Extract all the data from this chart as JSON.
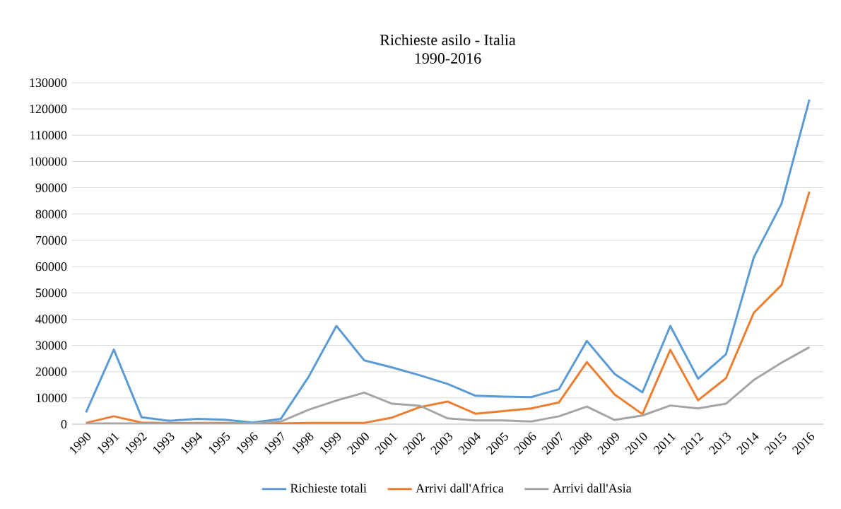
{
  "chart_data": {
    "type": "line",
    "title": "Richieste asilo - Italia",
    "subtitle": "1990-2016",
    "categories": [
      "1990",
      "1991",
      "1992",
      "1993",
      "1994",
      "1995",
      "1996",
      "1997",
      "1998",
      "1999",
      "2000",
      "2001",
      "2002",
      "2003",
      "2004",
      "2005",
      "2006",
      "2007",
      "2008",
      "2009",
      "2010",
      "2011",
      "2012",
      "2013",
      "2014",
      "2015",
      "2016"
    ],
    "series": [
      {
        "name": "Richieste totali",
        "color": "#5b9bd5",
        "values": [
          4500,
          28400,
          2600,
          1300,
          2000,
          1700,
          600,
          2000,
          18000,
          37400,
          24300,
          21600,
          18600,
          15300,
          10800,
          10500,
          10300,
          13300,
          31700,
          19100,
          12100,
          37400,
          17300,
          26600,
          63500,
          84000,
          123600
        ]
      },
      {
        "name": "Arrivi dall'Africa",
        "color": "#ed7d31",
        "values": [
          500,
          3000,
          600,
          400,
          500,
          500,
          300,
          300,
          500,
          500,
          500,
          2500,
          6500,
          8600,
          4000,
          5000,
          6000,
          8300,
          23600,
          11300,
          3800,
          28300,
          9100,
          17500,
          42400,
          53000,
          88500
        ]
      },
      {
        "name": "Arrivi dall'Asia",
        "color": "#a5a5a5",
        "values": [
          300,
          300,
          300,
          300,
          300,
          300,
          300,
          1000,
          5500,
          9000,
          12000,
          7800,
          7000,
          2200,
          1400,
          1400,
          1000,
          3000,
          6700,
          1600,
          3300,
          7100,
          6000,
          7800,
          16800,
          23400,
          29300
        ]
      }
    ],
    "ylim": [
      0,
      130000
    ],
    "yticks": [
      0,
      10000,
      20000,
      30000,
      40000,
      50000,
      60000,
      70000,
      80000,
      90000,
      100000,
      110000,
      120000,
      130000
    ],
    "grid": "y",
    "legend": "bottom",
    "marker": "none",
    "line_style": "solid"
  }
}
